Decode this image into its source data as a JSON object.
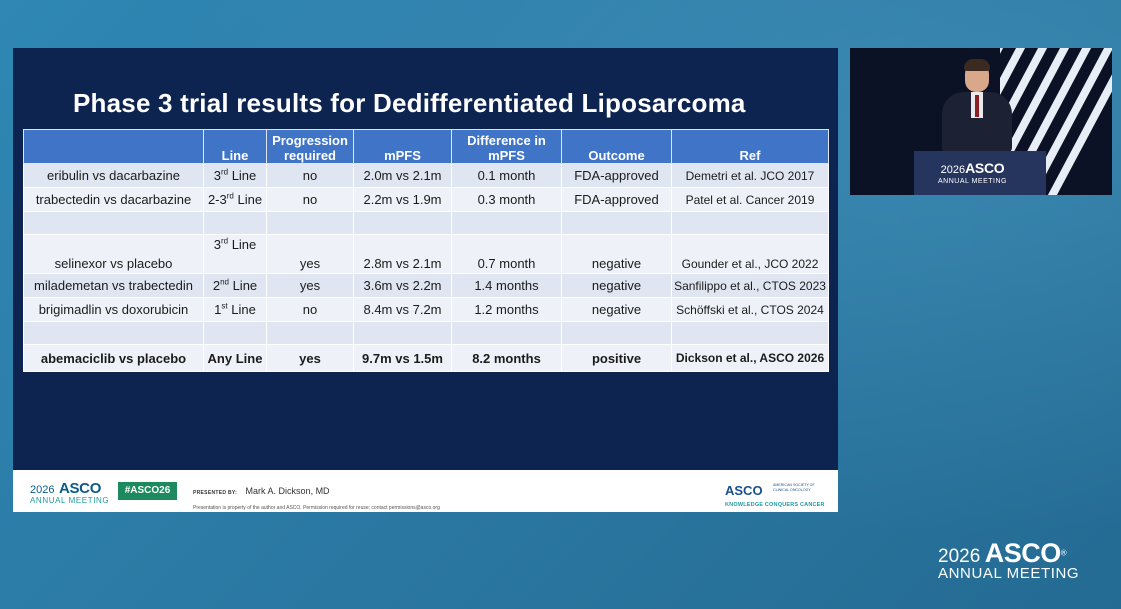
{
  "slide": {
    "title": "Phase 3 trial results for Dedifferentiated Liposarcoma",
    "table": {
      "headers": {
        "comparison": "",
        "line": "Line",
        "progression_line1": "Progression",
        "progression_line2": "required",
        "mpfs": "mPFS",
        "difference_line1": "Difference in",
        "difference_line2": "mPFS",
        "outcome": "Outcome",
        "ref": "Ref"
      },
      "rows": [
        {
          "comparison": "eribulin vs dacarbazine",
          "line_num": "3",
          "line_sup": "rd",
          "line_suffix": " Line",
          "progression": "no",
          "mpfs": "2.0m vs 2.1m",
          "difference": "0.1 month",
          "outcome": "FDA-approved",
          "ref": "Demetri et al. JCO 2017"
        },
        {
          "comparison": "trabectedin vs dacarbazine",
          "line_num": "2-3",
          "line_sup": "rd",
          "line_suffix": " Line",
          "progression": "no",
          "mpfs": "2.2m vs 1.9m",
          "difference": "0.3 month",
          "outcome": "FDA-approved",
          "ref": "Patel et al. Cancer 2019"
        },
        {
          "comparison": "selinexor vs placebo",
          "line_num": "3",
          "line_sup": "rd",
          "line_suffix": " Line",
          "progression": "yes",
          "mpfs": "2.8m vs 2.1m",
          "difference": "0.7 month",
          "outcome": "negative",
          "ref": "Gounder et al., JCO 2022"
        },
        {
          "comparison": "milademetan vs trabectedin",
          "line_num": "2",
          "line_sup": "nd",
          "line_suffix": " Line",
          "progression": "yes",
          "mpfs": "3.6m vs 2.2m",
          "difference": "1.4 months",
          "outcome": "negative",
          "ref": "Sanfilippo et al., CTOS 2023"
        },
        {
          "comparison": "brigimadlin vs doxorubicin",
          "line_num": "1",
          "line_sup": "st",
          "line_suffix": " Line",
          "progression": "no",
          "mpfs": "8.4m vs 7.2m",
          "difference": "1.2 months",
          "outcome": "negative",
          "ref": "Schöffski et al., CTOS 2024"
        },
        {
          "comparison": "abemaciclib vs placebo",
          "line": "Any Line",
          "progression": "yes",
          "mpfs": "9.7m vs 1.5m",
          "difference": "8.2 months",
          "outcome": "positive",
          "ref": "Dickson et al., ASCO 2026"
        }
      ]
    },
    "footer": {
      "logo_year": "2026",
      "logo_name": "ASCO",
      "logo_sub": "ANNUAL MEETING",
      "hashtag": "#ASCO26",
      "presented_by_label": "PRESENTED BY:",
      "presenter": "Mark A. Dickson, MD",
      "disclaimer": "Presentation is property of the author and ASCO. Permission required for reuse; contact permissions@asco.org",
      "society_name": "ASCO",
      "society_desc": "AMERICAN SOCIETY OF CLINICAL ONCOLOGY",
      "society_tagline": "KNOWLEDGE CONQUERS CANCER"
    }
  },
  "video": {
    "podium_year": "2026",
    "podium_name": "ASCO",
    "podium_sub": "ANNUAL MEETING"
  },
  "watermark": {
    "year": "2026",
    "name": "ASCO",
    "sub": "ANNUAL MEETING"
  },
  "colors": {
    "slide_bg": "#0d2450",
    "header_blue": "#3f74c6",
    "row_light": "#dfe6f2",
    "hashtag_green": "#1c8a5e",
    "page_bg": "#2b7aa5"
  }
}
